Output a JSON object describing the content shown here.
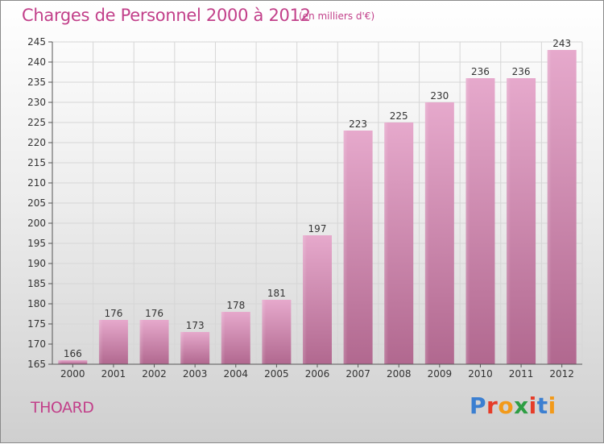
{
  "header": {
    "title": "Charges de Personnel 2000 à 2012",
    "unit": "(en milliers d'€)"
  },
  "footer": {
    "place": "THOARD",
    "logo_letters": [
      "P",
      "r",
      "o",
      "x",
      "i",
      "t",
      "i"
    ],
    "logo_colors": [
      "#3b7fd1",
      "#e63c28",
      "#f29a1a",
      "#2e9e44",
      "#e63c28",
      "#3b7fd1",
      "#f29a1a"
    ]
  },
  "chart_data": {
    "type": "bar",
    "title": "Charges de Personnel 2000 à 2012",
    "xlabel": "",
    "ylabel": "",
    "categories": [
      "2000",
      "2001",
      "2002",
      "2003",
      "2004",
      "2005",
      "2006",
      "2007",
      "2008",
      "2009",
      "2010",
      "2011",
      "2012"
    ],
    "values": [
      166,
      176,
      176,
      173,
      178,
      181,
      197,
      223,
      225,
      230,
      236,
      236,
      243
    ],
    "ylim": [
      165,
      245
    ],
    "yticks": [
      165,
      170,
      175,
      180,
      185,
      190,
      195,
      200,
      205,
      210,
      215,
      220,
      225,
      230,
      235,
      240,
      245
    ],
    "grid": true,
    "bar_color": "#d58cb7"
  }
}
